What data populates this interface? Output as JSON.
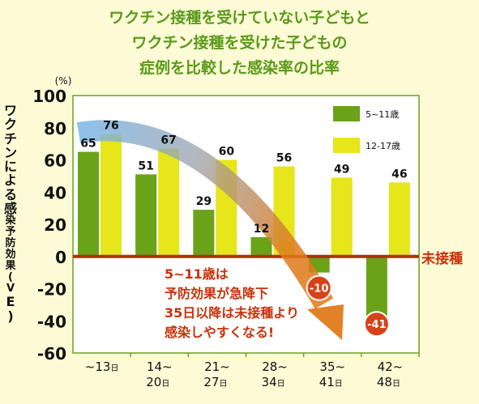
{
  "title_lines": [
    "ワクチン接種を受けていない子どもと",
    "ワクチン接種を受けた子どもの",
    "症例を比較した感染率の比率"
  ],
  "colors": {
    "title": "#5a9a1a",
    "series_5_11": "#6aa318",
    "series_12_17": "#e6e61a",
    "zero_line": "#b0300a",
    "annotation_text": "#c8320a",
    "arrow_start": "#7ab6e8",
    "arrow_end": "#e07a1a",
    "negative_badge": "#d8421a",
    "plot_bg": "#ffffff",
    "plot_border": "#6aa318"
  },
  "chart_data": {
    "type": "bar",
    "ylabel": "ワクチンによる感染予防効果(VE)",
    "yunit": "(%)",
    "ylim": [
      -60,
      100
    ],
    "yticks": [
      "100",
      "80",
      "60",
      "40",
      "20",
      "0",
      "-20",
      "-40",
      "-60"
    ],
    "categories": [
      {
        "line1": "~13",
        "day": "日",
        "line2": ""
      },
      {
        "line1": "14~",
        "day": "日",
        "line2": "20"
      },
      {
        "line1": "21~",
        "day": "日",
        "line2": "27"
      },
      {
        "line1": "28~",
        "day": "日",
        "line2": "34"
      },
      {
        "line1": "35~",
        "day": "日",
        "line2": "41"
      },
      {
        "line1": "42~",
        "day": "日",
        "line2": "48"
      }
    ],
    "series": [
      {
        "name": "5~11歳",
        "values": [
          65,
          51,
          29,
          12,
          -10,
          -41
        ]
      },
      {
        "name": "12-17歳",
        "values": [
          76,
          67,
          60,
          56,
          49,
          46
        ]
      }
    ],
    "value_labels": {
      "series0": [
        "65",
        "51",
        "29",
        "12",
        "-10",
        "-41"
      ],
      "series1": [
        "76",
        "67",
        "60",
        "56",
        "49",
        "46"
      ]
    },
    "zero_line_label": "未接種",
    "annotation_lines": [
      "5~11歳は",
      "予防効果が急降下",
      "35日以降は未接種より",
      "感染しやすくなる!"
    ],
    "legend_position": "top-right",
    "grid": false
  }
}
